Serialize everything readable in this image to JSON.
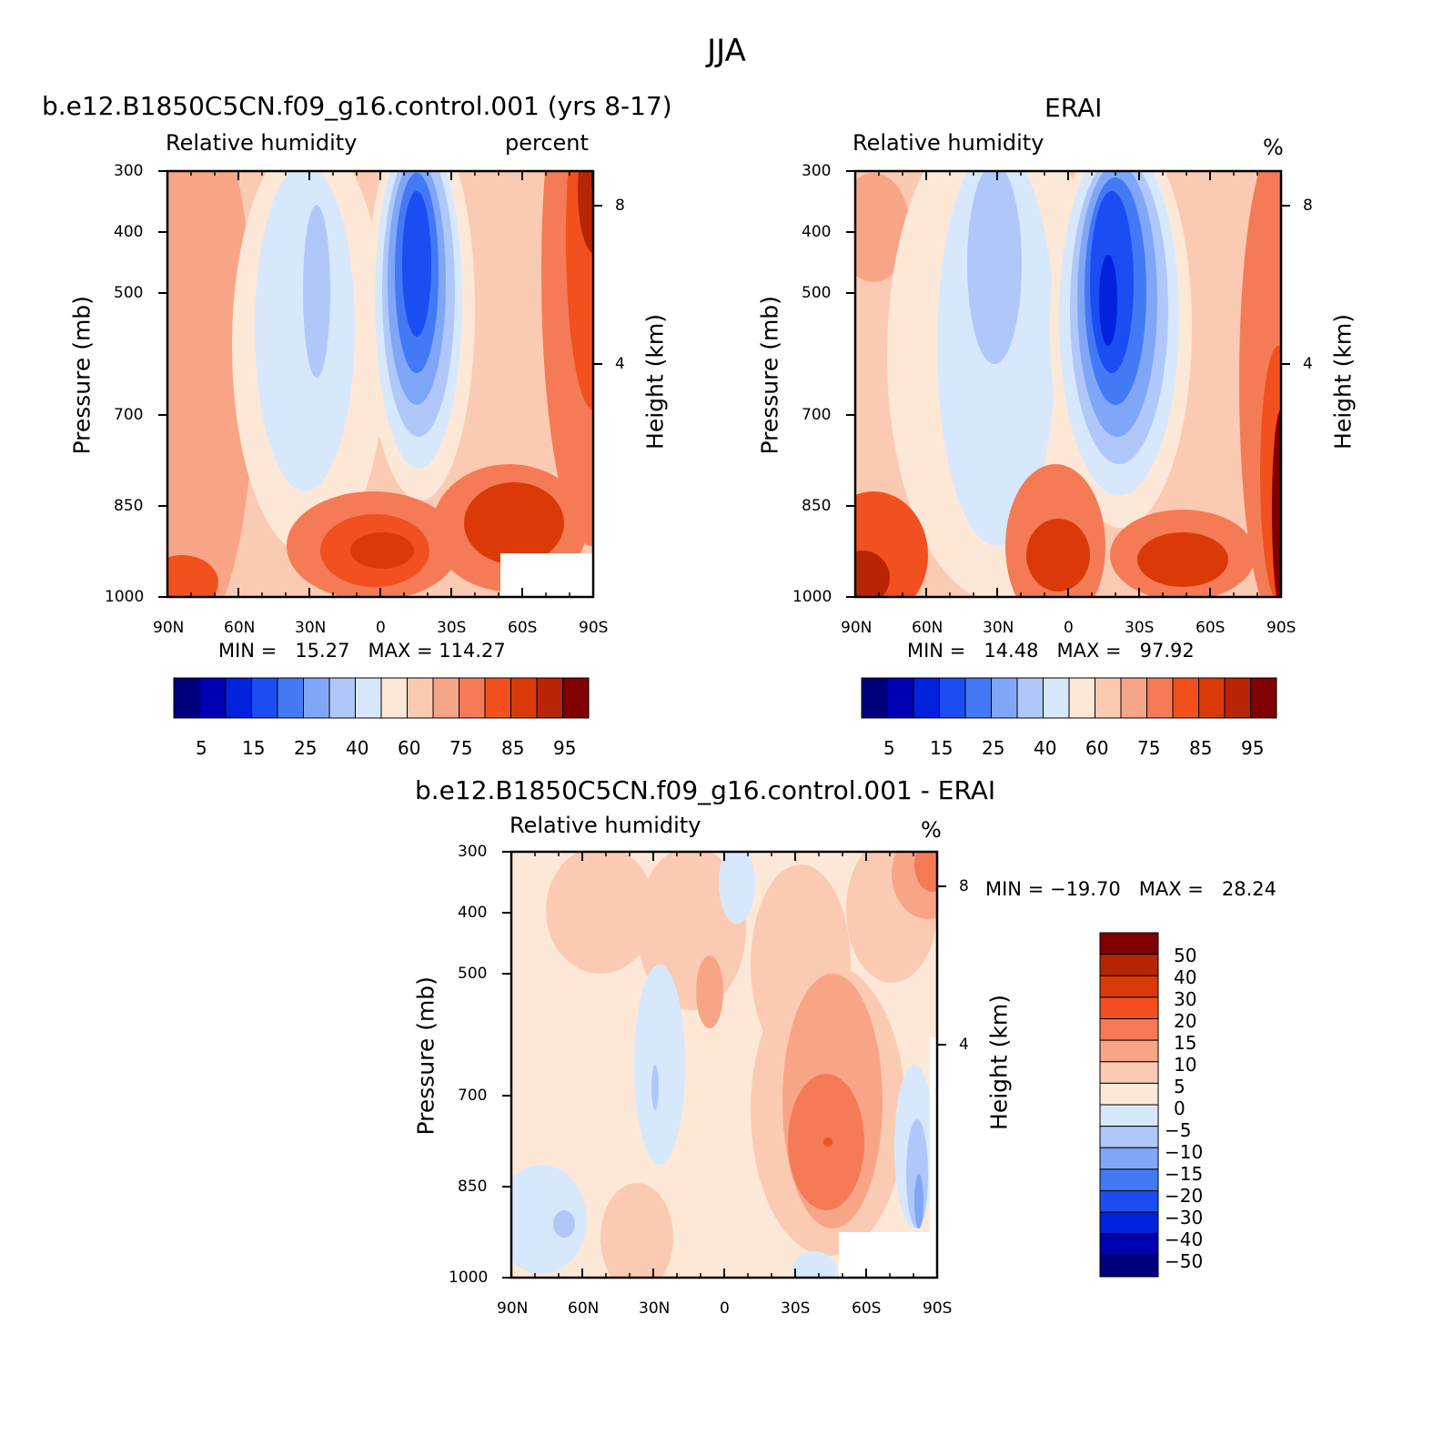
{
  "figure_title": "JJA",
  "colors": {
    "rh_levels": [
      "#00007f",
      "#0000b3",
      "#0022dd",
      "#1a4df2",
      "#4479f6",
      "#7fa6f7",
      "#b0c8f9",
      "#d8e8fc",
      "#fde8d8",
      "#fbcab2",
      "#f8a587",
      "#f47b56",
      "#f2501f",
      "#db3a08",
      "#b82505",
      "#7f0000"
    ],
    "diff_levels": [
      "#00007f",
      "#0000b3",
      "#0022dd",
      "#1a4df2",
      "#4479f6",
      "#7fa6f7",
      "#b0c8f9",
      "#d8e8fc",
      "#fde8d8",
      "#fbcab2",
      "#f8a587",
      "#f47b56",
      "#f2501f",
      "#db3a08",
      "#b82505",
      "#7f0000"
    ]
  },
  "chart_data": [
    {
      "type": "heatmap",
      "title": "b.e12.B1850C5CN.f09_g16.control.001 (yrs 8-17)",
      "left_subtitle": "Relative humidity",
      "right_subtitle": "percent",
      "xlabel": "",
      "ylabel": "Pressure (mb)",
      "right_axis_label": "Height (km)",
      "x_ticks": [
        "90N",
        "60N",
        "30N",
        "0",
        "30S",
        "60S",
        "90S"
      ],
      "y_ticks": [
        "300",
        "400",
        "500",
        "700",
        "850",
        "1000"
      ],
      "y_right_ticks": [
        "8",
        "4"
      ],
      "min_label": "MIN =   15.27   MAX = 114.27",
      "colorbar_labels": [
        "5",
        "15",
        "25",
        "40",
        "60",
        "75",
        "85",
        "95"
      ],
      "contour_levels": [
        5,
        10,
        15,
        20,
        25,
        30,
        40,
        50,
        60,
        65,
        75,
        80,
        85,
        90,
        95
      ],
      "fields": [
        {
          "lat": 17,
          "p": 420,
          "rh": 15
        },
        {
          "lat": -40,
          "p": 600,
          "rh": 35
        },
        {
          "lat": 5,
          "p": 920,
          "rh": 85
        },
        {
          "lat": -65,
          "p": 900,
          "rh": 85
        },
        {
          "lat": -88,
          "p": 320,
          "rh": 98
        },
        {
          "lat": 85,
          "p": 980,
          "rh": 88
        }
      ]
    },
    {
      "type": "heatmap",
      "title": "ERAI",
      "left_subtitle": "Relative humidity",
      "right_subtitle": "%",
      "xlabel": "",
      "ylabel": "Pressure (mb)",
      "right_axis_label": "Height (km)",
      "x_ticks": [
        "90N",
        "60N",
        "30N",
        "0",
        "30S",
        "60S",
        "90S"
      ],
      "y_ticks": [
        "300",
        "400",
        "500",
        "700",
        "850",
        "1000"
      ],
      "y_right_ticks": [
        "8",
        "4"
      ],
      "min_label": "MIN =   14.48   MAX =   97.92",
      "colorbar_labels": [
        "5",
        "15",
        "25",
        "40",
        "60",
        "75",
        "85",
        "95"
      ],
      "contour_levels": [
        5,
        10,
        15,
        20,
        25,
        30,
        40,
        50,
        60,
        65,
        75,
        80,
        85,
        90,
        95
      ],
      "fields": [
        {
          "lat": 17,
          "p": 480,
          "rh": 14
        },
        {
          "lat": -40,
          "p": 500,
          "rh": 40
        },
        {
          "lat": 8,
          "p": 920,
          "rh": 87
        },
        {
          "lat": -62,
          "p": 900,
          "rh": 84
        },
        {
          "lat": -88,
          "p": 700,
          "rh": 95
        }
      ]
    },
    {
      "type": "heatmap",
      "title": "b.e12.B1850C5CN.f09_g16.control.001 - ERAI",
      "left_subtitle": "Relative humidity",
      "right_subtitle": "%",
      "xlabel": "",
      "ylabel": "Pressure (mb)",
      "right_axis_label": "Height (km)",
      "x_ticks": [
        "90N",
        "60N",
        "30N",
        "0",
        "30S",
        "60S",
        "90S"
      ],
      "y_ticks": [
        "300",
        "400",
        "500",
        "700",
        "850",
        "1000"
      ],
      "y_right_ticks": [
        "8",
        "4"
      ],
      "min_label": "MIN = −19.70   MAX =   28.24",
      "colorbar_labels": [
        "50",
        "40",
        "30",
        "20",
        "15",
        "10",
        "5",
        "0",
        "−5",
        "−10",
        "−15",
        "−20",
        "−30",
        "−40",
        "−50"
      ],
      "contour_levels": [
        -50,
        -40,
        -30,
        -20,
        -15,
        -10,
        -5,
        0,
        5,
        10,
        15,
        20,
        30,
        40,
        50
      ],
      "fields": [
        {
          "lat": -48,
          "p": 780,
          "d": 22
        },
        {
          "lat": 30,
          "p": 680,
          "d": -10
        },
        {
          "lat": -82,
          "p": 800,
          "d": -12
        },
        {
          "lat": -87,
          "p": 320,
          "d": 25
        },
        {
          "lat": 80,
          "p": 920,
          "d": -8
        }
      ]
    }
  ]
}
